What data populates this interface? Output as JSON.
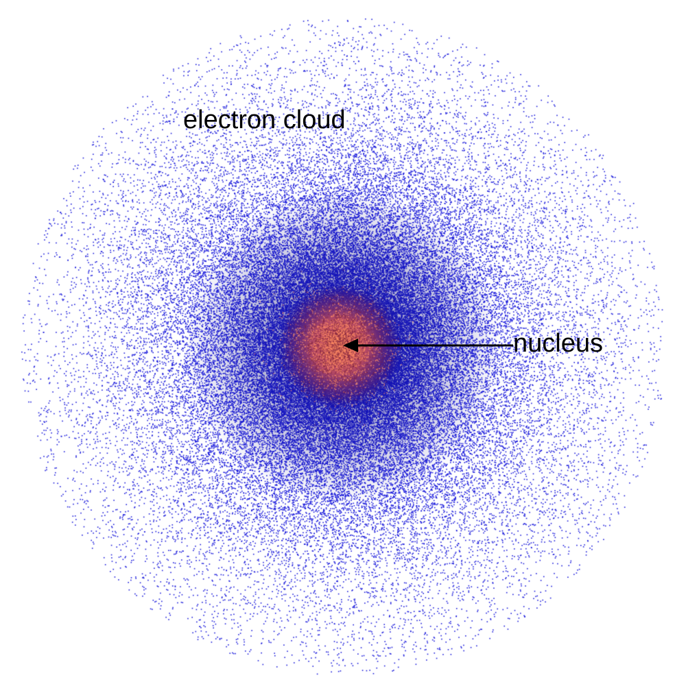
{
  "labels": {
    "electron_cloud": "electron cloud",
    "nucleus": "nucleus"
  },
  "colors": {
    "background": "#ffffff",
    "electron_dots": "#1a1adc",
    "nucleus_core": "#ff6a4a",
    "nucleus_edge": "#7a1f3a",
    "arrow": "#000000",
    "label_text": "#000000"
  },
  "icons": {
    "arrow": "left-arrow-icon"
  }
}
